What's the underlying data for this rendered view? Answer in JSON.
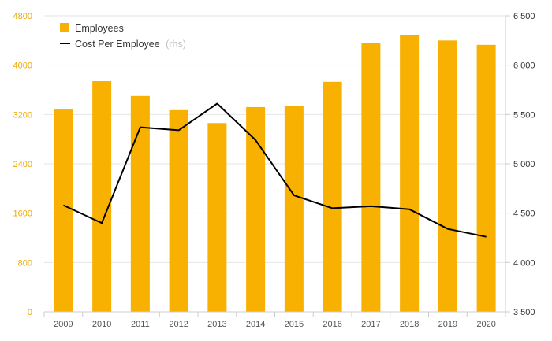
{
  "chart_data": {
    "type": "bar",
    "categories": [
      "2009",
      "2010",
      "2011",
      "2012",
      "2013",
      "2014",
      "2015",
      "2016",
      "2017",
      "2018",
      "2019",
      "2020"
    ],
    "series": [
      {
        "name": "Employees",
        "type": "bar",
        "axis": "left",
        "color": "#f8b100",
        "values": [
          3280,
          3740,
          3500,
          3270,
          3060,
          3320,
          3340,
          3730,
          4360,
          4490,
          4400,
          4330
        ]
      },
      {
        "name": "Cost Per Employee",
        "legend_suffix": "(rhs)",
        "type": "line",
        "axis": "right",
        "color": "#000000",
        "values": [
          4580,
          4400,
          5370,
          5340,
          5610,
          5240,
          4680,
          4550,
          4570,
          4540,
          4340,
          4260
        ]
      }
    ],
    "y_left": {
      "ylim": [
        0,
        4800
      ],
      "ticks": [
        0,
        800,
        1600,
        2400,
        3200,
        4000,
        4800
      ],
      "tick_labels": [
        "0",
        "800",
        "1600",
        "2400",
        "3200",
        "4000",
        "4800"
      ],
      "label_color": "#f0a800"
    },
    "y_right": {
      "ylim": [
        3500,
        6500
      ],
      "ticks": [
        3500,
        4000,
        4500,
        5000,
        5500,
        6000,
        6500
      ],
      "tick_labels": [
        "3 500",
        "4 000",
        "4 500",
        "5 000",
        "5 500",
        "6 000",
        "6 500"
      ]
    },
    "grid": true,
    "legend": "top-left"
  }
}
